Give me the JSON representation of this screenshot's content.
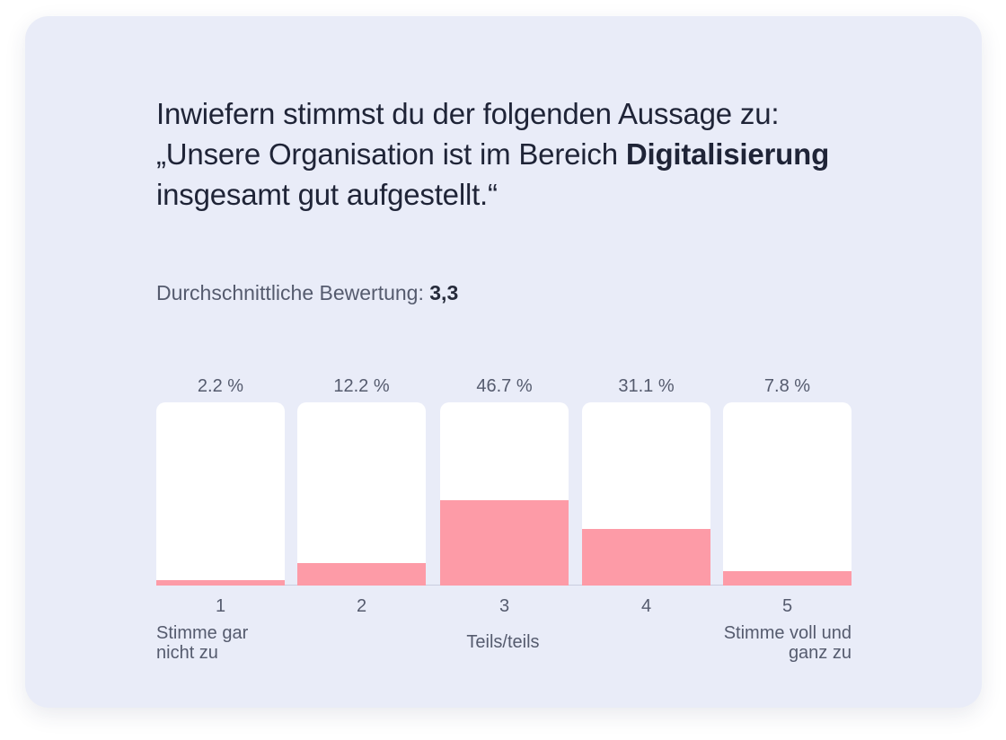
{
  "question": {
    "line1": "Inwiefern stimmst du der folgenden Aussage zu:",
    "line2_prefix": "„Unsere Organisation ist im Bereich ",
    "line2_bold": "Digitalisierung",
    "line3": "insgesamt gut aufgestellt.“"
  },
  "average": {
    "label": "Durchschnittliche Bewertung:",
    "value": "3,3"
  },
  "chart_data": {
    "type": "bar",
    "title": "Durchschnittliche Bewertung: 3,3",
    "categories": [
      "1",
      "2",
      "3",
      "4",
      "5"
    ],
    "values": [
      2.2,
      12.2,
      46.7,
      31.1,
      7.8
    ],
    "value_labels": [
      "2.2 %",
      "12.2 %",
      "46.7 %",
      "31.1 %",
      "7.8 %"
    ],
    "unit": "%",
    "ylim": [
      0,
      100
    ],
    "xlabel": "",
    "ylabel": "",
    "scale_labels": {
      "low": [
        "Stimme gar",
        "nicht zu"
      ],
      "mid": "Teils/teils",
      "high": [
        "Stimme voll und",
        "ganz zu"
      ]
    },
    "colors": {
      "fill": "#fd9ba7",
      "track": "#ffffff",
      "background": "#e9ecf8"
    }
  }
}
